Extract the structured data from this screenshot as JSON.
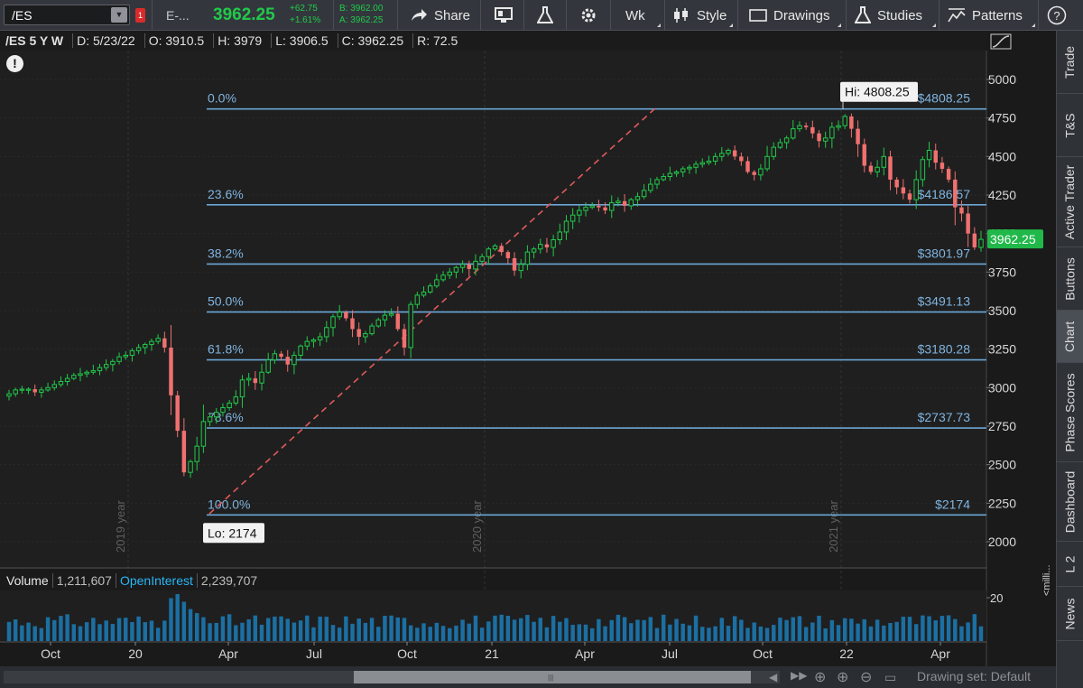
{
  "toolbar": {
    "symbol": "/ES",
    "description": "E-...",
    "last_price": "3962.25",
    "change": "+62.75",
    "change_pct": "+1.61%",
    "bid": "B: 3962.00",
    "ask": "A: 3962.25",
    "share": "Share",
    "timeframe": "Wk",
    "style": "Style",
    "drawings": "Drawings",
    "studies": "Studies",
    "patterns": "Patterns",
    "accent_up": "#21c94a",
    "accent_down": "#f07070"
  },
  "chart_header": {
    "symbol": "/ES 5 Y W",
    "date": "D: 5/23/22",
    "open": "O: 3910.5",
    "high": "H: 3979",
    "low": "L: 3906.5",
    "close": "C: 3962.25",
    "range": "R: 72.5"
  },
  "price_axis": {
    "ticks": [
      "5000",
      "4750",
      "4500",
      "4250",
      "4000",
      "3750",
      "3500",
      "3250",
      "3000",
      "2750",
      "2500",
      "2250",
      "2000"
    ],
    "current_price": "3962.25"
  },
  "fib_levels": [
    {
      "pct": "0.0%",
      "price_label": "$4808.25",
      "value": 4808.25
    },
    {
      "pct": "23.6%",
      "price_label": "$4186.57",
      "value": 4186.57
    },
    {
      "pct": "38.2%",
      "price_label": "$3801.97",
      "value": 3801.97
    },
    {
      "pct": "50.0%",
      "price_label": "$3491.13",
      "value": 3491.13
    },
    {
      "pct": "61.8%",
      "price_label": "$3180.28",
      "value": 3180.28
    },
    {
      "pct": "78.6%",
      "price_label": "$2737.73",
      "value": 2737.73
    },
    {
      "pct": "100.0%",
      "price_label": "$2174",
      "value": 2174
    }
  ],
  "annotations": {
    "hi": "Hi: 4808.25",
    "lo": "Lo: 2174",
    "year_labels": [
      "2019 year",
      "2020 year",
      "2021 year"
    ]
  },
  "x_axis": {
    "labels": [
      "Oct",
      "20",
      "Apr",
      "Jul",
      "Oct",
      "21",
      "Apr",
      "Jul",
      "Oct",
      "22",
      "Apr"
    ]
  },
  "volume": {
    "label": "Volume",
    "value": "1,211,607",
    "oi_label": "OpenInterest",
    "oi_value": "2,239,707",
    "axis_tick": "20",
    "unit_label": "<milli..."
  },
  "bottom_bar": {
    "drawing_set": "Drawing set: Default"
  },
  "right_tabs": [
    "Trade",
    "T&S",
    "Active Trader",
    "Buttons",
    "Chart",
    "Phase Scores",
    "Dashboard",
    "L 2",
    "News"
  ],
  "chart_data": {
    "type": "candlestick",
    "timeframe": "weekly",
    "y_range": [
      1900,
      5100
    ],
    "weekly_closes_approx": [
      2960,
      2985,
      2990,
      2990,
      2970,
      2985,
      3000,
      3020,
      3040,
      3060,
      3080,
      3090,
      3100,
      3110,
      3130,
      3150,
      3170,
      3200,
      3210,
      3240,
      3260,
      3280,
      3300,
      3320,
      3260,
      2950,
      2720,
      2450,
      2520,
      2620,
      2780,
      2810,
      2840,
      2870,
      2900,
      2940,
      3050,
      3060,
      3030,
      3100,
      3180,
      3220,
      3200,
      3150,
      3210,
      3270,
      3300,
      3310,
      3330,
      3390,
      3460,
      3490,
      3450,
      3380,
      3330,
      3350,
      3400,
      3440,
      3470,
      3480,
      3380,
      3260,
      3540,
      3600,
      3620,
      3660,
      3700,
      3730,
      3750,
      3780,
      3800,
      3770,
      3820,
      3850,
      3900,
      3920,
      3880,
      3840,
      3760,
      3800,
      3880,
      3900,
      3930,
      3910,
      3960,
      4010,
      4080,
      4120,
      4150,
      4170,
      4180,
      4170,
      4150,
      4200,
      4210,
      4180,
      4220,
      4240,
      4280,
      4320,
      4350,
      4370,
      4390,
      4400,
      4420,
      4430,
      4450,
      4460,
      4470,
      4500,
      4520,
      4540,
      4500,
      4470,
      4400,
      4380,
      4420,
      4500,
      4560,
      4590,
      4620,
      4680,
      4700,
      4690,
      4650,
      4600,
      4620,
      4690,
      4700,
      4760,
      4680,
      4580,
      4440,
      4400,
      4430,
      4500,
      4350,
      4300,
      4260,
      4220,
      4350,
      4480,
      4540,
      4460,
      4420,
      4350,
      4170,
      4130,
      4000,
      3910,
      3962.25
    ]
  }
}
